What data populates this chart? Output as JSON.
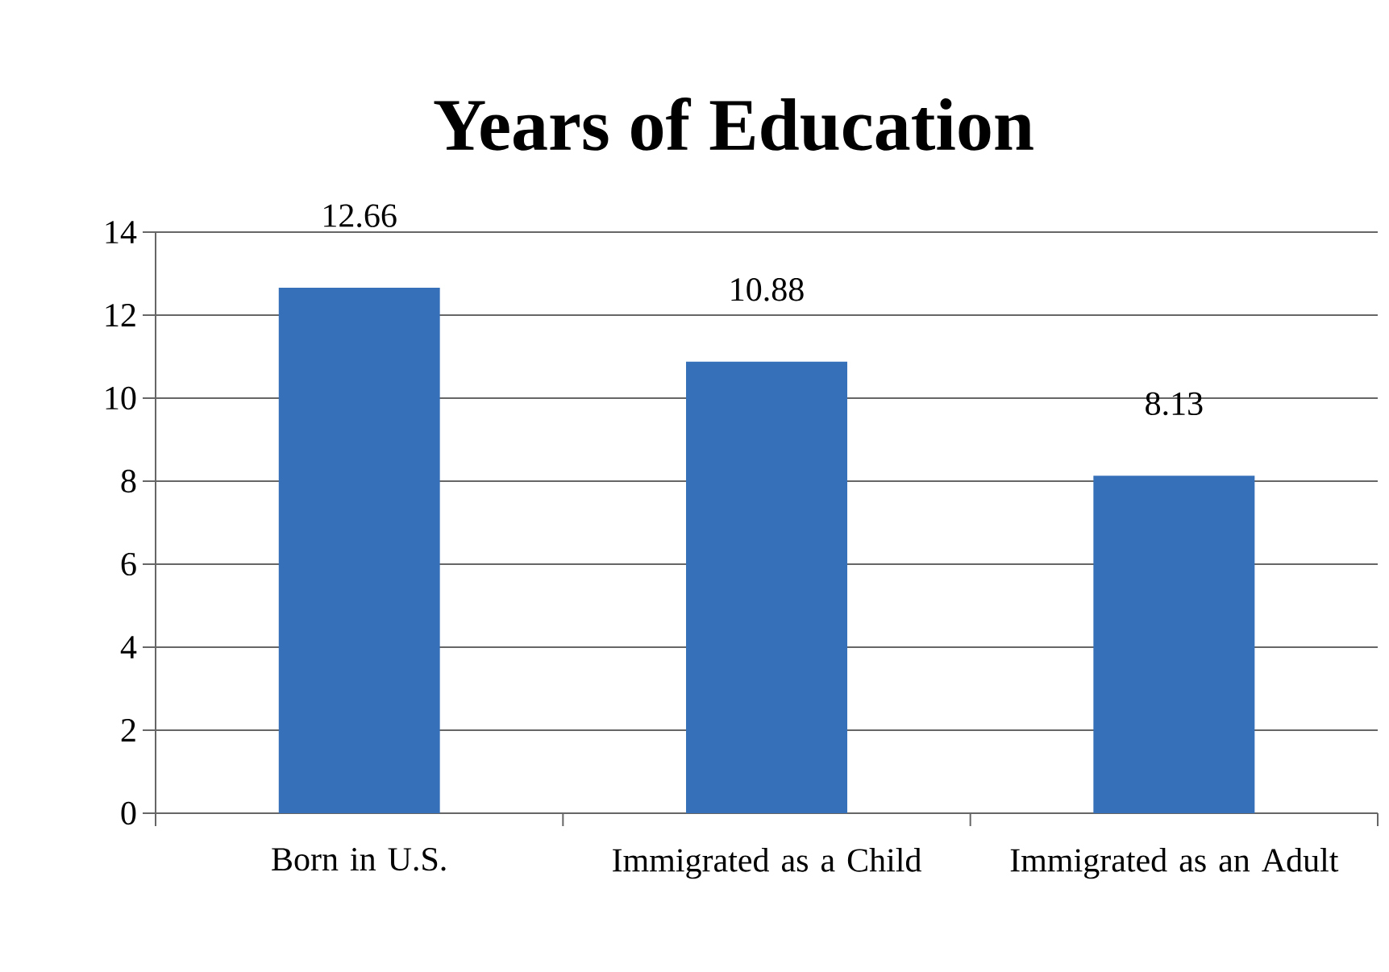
{
  "chart_data": {
    "type": "bar",
    "title": "Years of Education",
    "categories": [
      "Born in U.S.",
      "Immigrated as a Child",
      "Immigrated as an Adult"
    ],
    "values": [
      12.66,
      10.88,
      8.13
    ],
    "color": "#3670b8",
    "ylim": [
      0,
      14
    ],
    "yticks": [
      0,
      2,
      4,
      6,
      8,
      10,
      12,
      14
    ],
    "grid": "y",
    "data_labels": true
  }
}
